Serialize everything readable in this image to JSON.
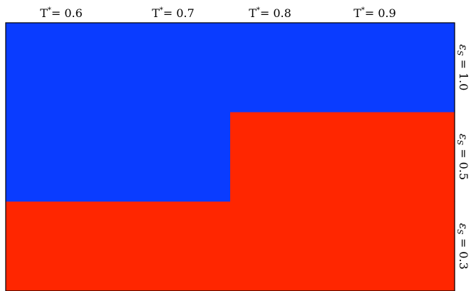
{
  "chart_data": {
    "type": "heatmap",
    "columns": [
      {
        "label": "T",
        "superscript": "*",
        "value_text": "= 0.6",
        "value": 0.6
      },
      {
        "label": "T",
        "superscript": "*",
        "value_text": "= 0.7",
        "value": 0.7
      },
      {
        "label": "T",
        "superscript": "*",
        "value_text": "= 0.8",
        "value": 0.8
      },
      {
        "label": "T",
        "superscript": "*",
        "value_text": "= 0.9",
        "value": 0.9
      }
    ],
    "rows": [
      {
        "symbol": "ε",
        "subscript": "S",
        "value_text": " = 1.0",
        "value": 1.0
      },
      {
        "symbol": "ε",
        "subscript": "S",
        "value_text": " = 0.5",
        "value": 0.5
      },
      {
        "symbol": "ε",
        "subscript": "S",
        "value_text": " = 0.3",
        "value": 0.3
      }
    ],
    "cells": [
      [
        "blue",
        "blue",
        "blue",
        "blue"
      ],
      [
        "blue",
        "blue",
        "red",
        "red"
      ],
      [
        "red",
        "red",
        "red",
        "red"
      ]
    ],
    "colors": {
      "blue": "#0a3cff",
      "red": "#ff2600"
    }
  }
}
